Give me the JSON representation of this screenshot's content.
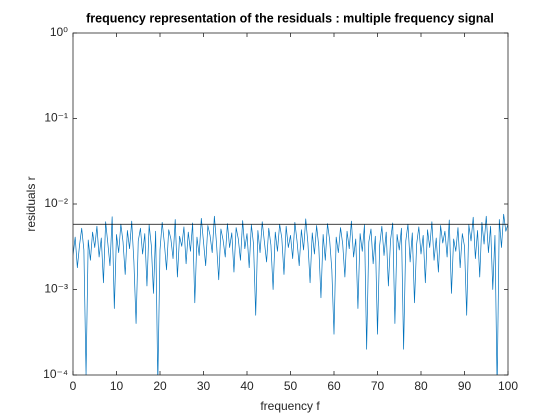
{
  "chart_data": {
    "type": "line",
    "title": "frequency representation of the residuals : multiple frequency signal",
    "xlabel": "frequency f",
    "ylabel": "residuals r",
    "xlim": [
      0,
      100
    ],
    "xticks": [
      0,
      10,
      20,
      30,
      40,
      50,
      60,
      70,
      80,
      90,
      100
    ],
    "ylim": [
      0.0001,
      1
    ],
    "log_y": true,
    "yticks": [
      {
        "value": 0.0001,
        "label": "10⁻⁴"
      },
      {
        "value": 0.001,
        "label": "10⁻³"
      },
      {
        "value": 0.01,
        "label": "10⁻²"
      },
      {
        "value": 0.1,
        "label": "10⁻¹"
      },
      {
        "value": 1,
        "label": "10⁰"
      }
    ],
    "grid": false,
    "series": [
      {
        "color": "#0072bd",
        "x": [
          0,
          0.5,
          1,
          1.5,
          2,
          2.5,
          3,
          3.5,
          4,
          4.5,
          5,
          5.5,
          6,
          6.5,
          7,
          7.5,
          8,
          8.5,
          9,
          9.5,
          10,
          10.5,
          11,
          11.5,
          12,
          12.5,
          13,
          13.5,
          14,
          14.5,
          15,
          15.5,
          16,
          16.5,
          17,
          17.5,
          18,
          18.5,
          19,
          19.5,
          20,
          20.5,
          21,
          21.5,
          22,
          22.5,
          23,
          23.5,
          24,
          24.5,
          25,
          25.5,
          26,
          26.5,
          27,
          27.5,
          28,
          28.5,
          29,
          29.5,
          30,
          30.5,
          31,
          31.5,
          32,
          32.5,
          33,
          33.5,
          34,
          34.5,
          35,
          35.5,
          36,
          36.5,
          37,
          37.5,
          38,
          38.5,
          39,
          39.5,
          40,
          40.5,
          41,
          41.5,
          42,
          42.5,
          43,
          43.5,
          44,
          44.5,
          45,
          45.5,
          46,
          46.5,
          47,
          47.5,
          48,
          48.5,
          49,
          49.5,
          50,
          50.5,
          51,
          51.5,
          52,
          52.5,
          53,
          53.5,
          54,
          54.5,
          55,
          55.5,
          56,
          56.5,
          57,
          57.5,
          58,
          58.5,
          59,
          59.5,
          60,
          60.5,
          61,
          61.5,
          62,
          62.5,
          63,
          63.5,
          64,
          64.5,
          65,
          65.5,
          66,
          66.5,
          67,
          67.5,
          68,
          68.5,
          69,
          69.5,
          70,
          70.5,
          71,
          71.5,
          72,
          72.5,
          73,
          73.5,
          74,
          74.5,
          75,
          75.5,
          76,
          76.5,
          77,
          77.5,
          78,
          78.5,
          79,
          79.5,
          80,
          80.5,
          81,
          81.5,
          82,
          82.5,
          83,
          83.5,
          84,
          84.5,
          85,
          85.5,
          86,
          86.5,
          87,
          87.5,
          88,
          88.5,
          89,
          89.5,
          90,
          90.5,
          91,
          91.5,
          92,
          92.5,
          93,
          93.5,
          94,
          94.5,
          95,
          95.5,
          96,
          96.5,
          97,
          97.5,
          98,
          98.5,
          99,
          99.5,
          100
        ],
        "values": [
          0.0025,
          0.0041,
          0.0018,
          0.0033,
          0.0052,
          0.0029,
          0.0001,
          0.0038,
          0.0022,
          0.0047,
          0.0031,
          0.0055,
          0.0024,
          0.004,
          0.0012,
          0.0062,
          0.0035,
          0.0019,
          0.0071,
          0.0006,
          0.0044,
          0.0027,
          0.0058,
          0.0036,
          0.0015,
          0.0049,
          0.003,
          0.0063,
          0.0021,
          0.0004,
          0.0037,
          0.0052,
          0.0026,
          0.0045,
          0.0011,
          0.0057,
          0.0033,
          0.0009,
          0.0048,
          8e-05,
          0.0029,
          0.0061,
          0.0035,
          0.0017,
          0.005,
          0.0039,
          0.0023,
          0.0066,
          0.0014,
          0.0042,
          0.0032,
          0.0054,
          0.002,
          0.0047,
          0.0028,
          0.006,
          0.0007,
          0.0041,
          0.0025,
          0.0068,
          0.0036,
          0.0019,
          0.0056,
          0.0043,
          0.0027,
          0.0072,
          0.0034,
          0.0013,
          0.0051,
          0.0038,
          0.0024,
          0.0059,
          0.0031,
          0.0046,
          0.0016,
          0.0053,
          0.0039,
          0.0022,
          0.0064,
          0.003,
          0.0045,
          0.0018,
          0.0057,
          0.0034,
          0.0005,
          0.0049,
          0.0027,
          0.0062,
          0.0036,
          0.0021,
          0.0052,
          0.0033,
          0.001,
          0.0047,
          0.0028,
          0.0058,
          0.004,
          0.0015,
          0.0055,
          0.0031,
          0.0043,
          0.0023,
          0.0061,
          0.0037,
          0.0019,
          0.005,
          0.0029,
          0.0067,
          0.0035,
          0.0012,
          0.0046,
          0.0026,
          0.0056,
          0.0032,
          0.0008,
          0.0044,
          0.0022,
          0.0059,
          0.0038,
          0.0017,
          0.0003,
          0.0041,
          0.0027,
          0.0053,
          0.0034,
          0.0014,
          0.0048,
          0.003,
          0.0063,
          0.0024,
          0.0039,
          0.0006,
          0.0045,
          0.0028,
          0.0057,
          0.0002,
          0.0036,
          0.0051,
          0.002,
          0.0042,
          0.0003,
          0.0033,
          0.0055,
          0.0025,
          0.0047,
          0.0011,
          0.0038,
          0.006,
          0.0004,
          0.0044,
          0.0029,
          0.0052,
          0.0002,
          0.0037,
          0.0058,
          0.0021,
          0.0046,
          0.0007,
          0.0034,
          0.0054,
          0.0026,
          0.0043,
          0.0012,
          0.005,
          0.0031,
          0.0062,
          0.0022,
          0.004,
          0.0016,
          0.0056,
          0.0035,
          0.0048,
          0.0024,
          0.0065,
          0.0009,
          0.0039,
          0.0028,
          0.0053,
          0.0018,
          0.0045,
          0.0032,
          0.0005,
          0.0057,
          0.0037,
          0.007,
          0.0023,
          0.0049,
          0.0014,
          0.0061,
          0.0034,
          0.0072,
          0.0027,
          0.0055,
          0.001,
          0.0043,
          7e-05,
          0.0066,
          0.0031,
          0.0076,
          0.0048,
          0.0058
        ]
      },
      {
        "color": "#000000",
        "x": [
          0,
          100
        ],
        "values": [
          0.0058,
          0.0058
        ]
      }
    ]
  }
}
